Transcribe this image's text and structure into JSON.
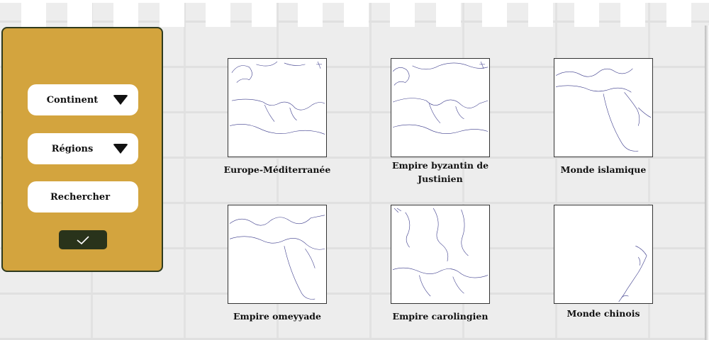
{
  "sidebar": {
    "continent_label": "Continent",
    "regions_label": "Régions",
    "search_label": "Rechercher"
  },
  "maps": [
    {
      "caption": "Europe-Méditerranée"
    },
    {
      "caption": "Empire byzantin de Justinien"
    },
    {
      "caption": "Monde islamique"
    },
    {
      "caption": "Empire omeyyade"
    },
    {
      "caption": "Empire carolingien"
    },
    {
      "caption": "Monde chinois"
    }
  ],
  "colors": {
    "panel": "#d3a43e",
    "panel_border": "#2f3a1e",
    "button": "#29331b",
    "map_line": "#3a3a8a"
  }
}
